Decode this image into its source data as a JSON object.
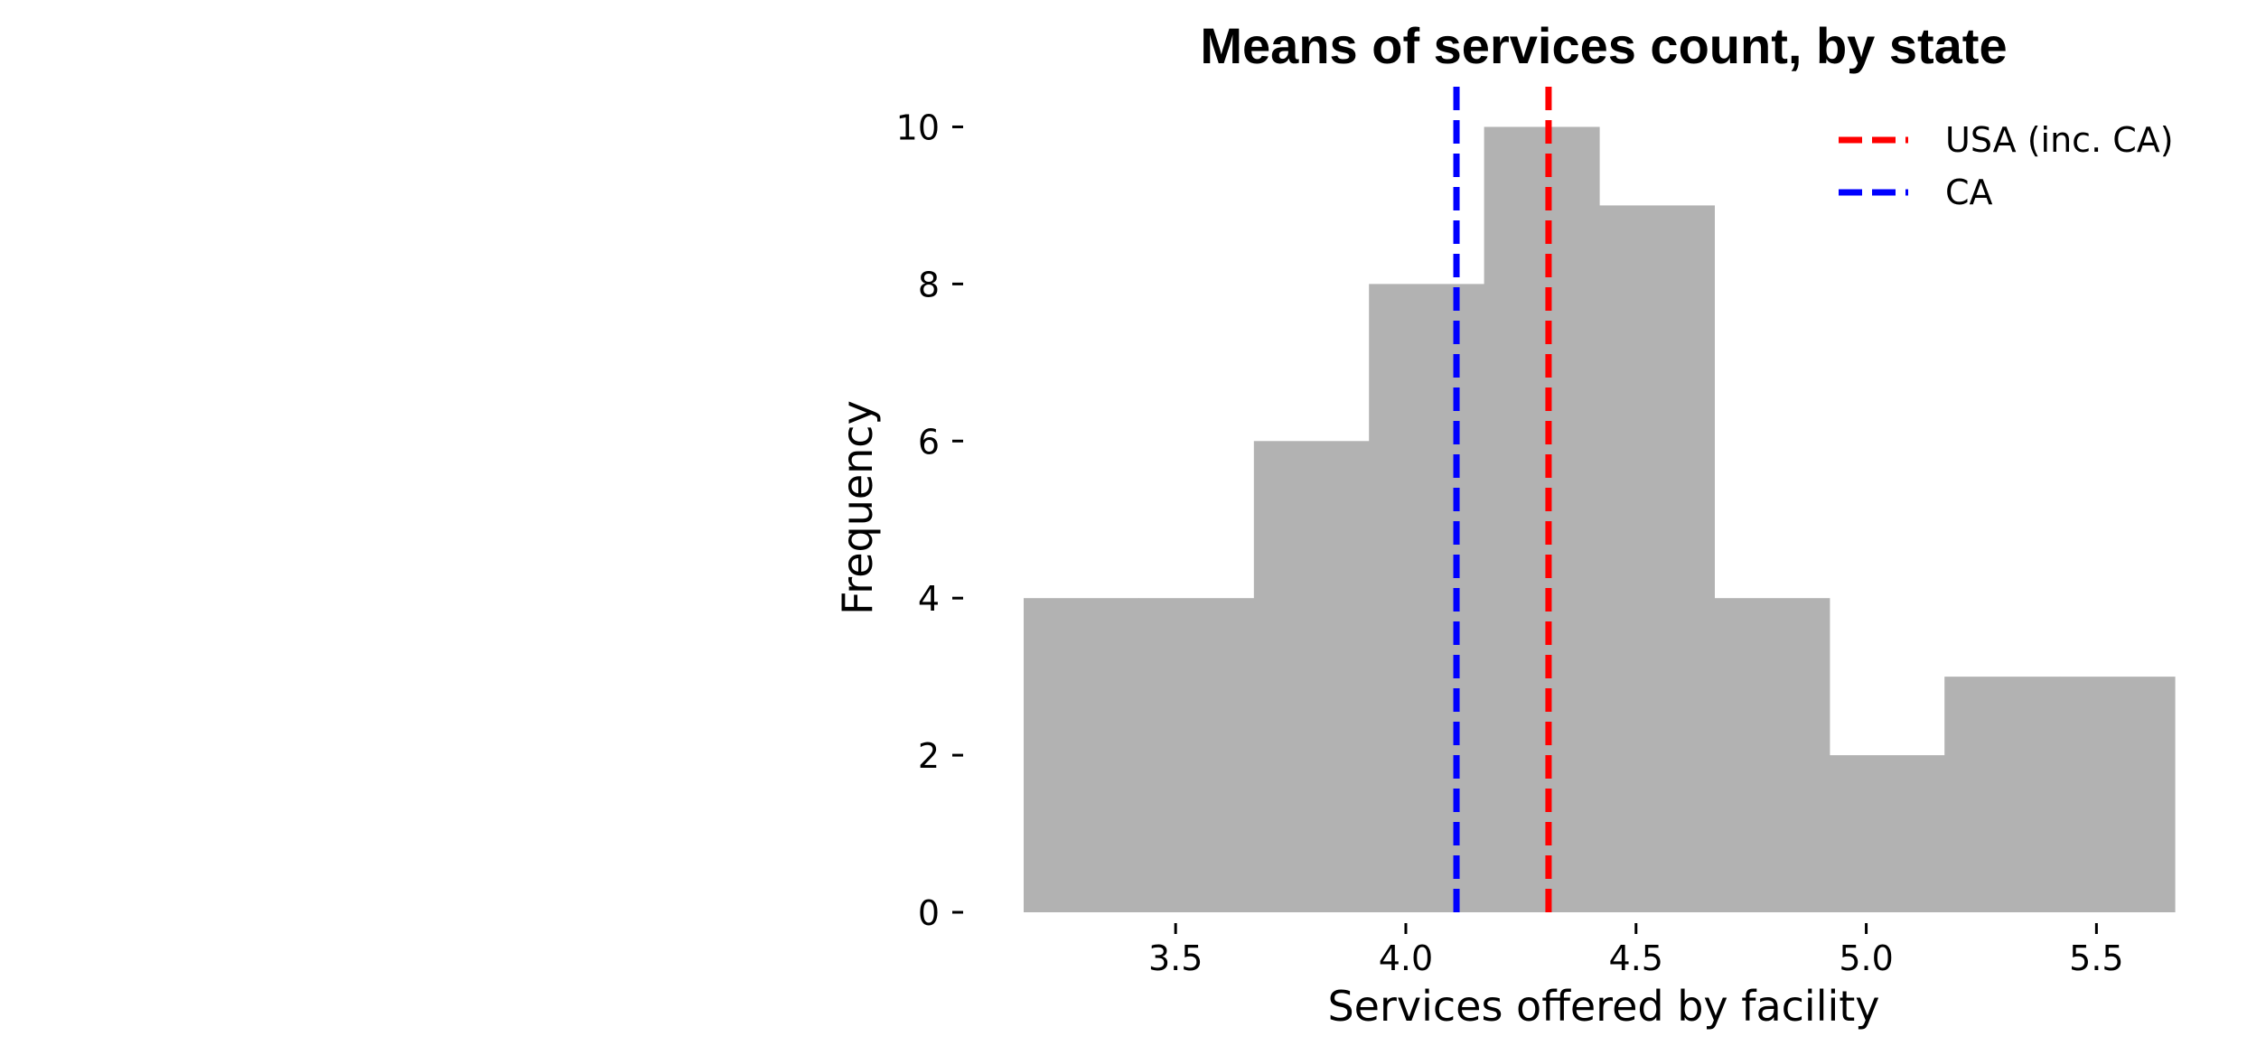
{
  "chart_data": {
    "type": "bar",
    "title": "Means of services count, by state",
    "xlabel": "Services offered by facility",
    "ylabel": "Frequency",
    "bins": [
      {
        "x0": 3.17,
        "x1": 3.42,
        "count": 4
      },
      {
        "x0": 3.42,
        "x1": 3.67,
        "count": 4
      },
      {
        "x0": 3.67,
        "x1": 3.92,
        "count": 6
      },
      {
        "x0": 3.92,
        "x1": 4.17,
        "count": 8
      },
      {
        "x0": 4.17,
        "x1": 4.42,
        "count": 10
      },
      {
        "x0": 4.42,
        "x1": 4.67,
        "count": 9
      },
      {
        "x0": 4.67,
        "x1": 4.92,
        "count": 4
      },
      {
        "x0": 4.92,
        "x1": 5.17,
        "count": 2
      },
      {
        "x0": 5.17,
        "x1": 5.42,
        "count": 3
      },
      {
        "x0": 5.42,
        "x1": 5.67,
        "count": 3
      }
    ],
    "xlim": [
      3.17,
      5.67
    ],
    "ylim": [
      0,
      10.5
    ],
    "xticks": [
      "3.5",
      "4.0",
      "4.5",
      "5.0",
      "5.5"
    ],
    "yticks": [
      "0",
      "2",
      "4",
      "6",
      "8",
      "10"
    ],
    "bar_color": "#b2b2b2",
    "vlines": [
      {
        "name": "USA (inc. CA)",
        "x": 4.31,
        "color": "#ff0000"
      },
      {
        "name": "CA",
        "x": 4.11,
        "color": "#0000ff"
      }
    ],
    "legend": "top-right",
    "grid": false
  }
}
